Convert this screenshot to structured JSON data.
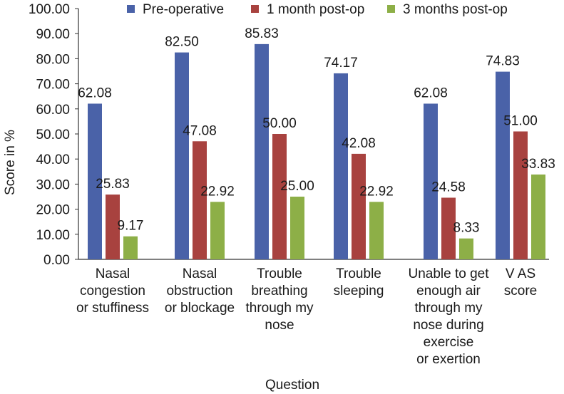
{
  "chart_data": {
    "type": "bar",
    "title": "",
    "xlabel": "Question",
    "ylabel": "Score in %",
    "ylim": [
      0,
      100
    ],
    "yticks": [
      "0.00",
      "10.00",
      "20.00",
      "30.00",
      "40.00",
      "50.00",
      "60.00",
      "70.00",
      "80.00",
      "90.00",
      "100.00"
    ],
    "grid": false,
    "legend_position": "top",
    "categories": [
      [
        "Nasal",
        "congestion",
        "or stuffiness"
      ],
      [
        "Nasal",
        "obstruction",
        "or blockage"
      ],
      [
        "Trouble",
        "breathing",
        "through my",
        "nose"
      ],
      [
        "Trouble",
        "sleeping"
      ],
      [
        "Unable to get",
        "enough air",
        "through my",
        "nose during",
        "exercise",
        "or exertion"
      ],
      [
        "V AS",
        "score"
      ]
    ],
    "series": [
      {
        "name": "Pre-operative",
        "color": "#4a62a8",
        "values": [
          62.08,
          82.5,
          85.83,
          74.17,
          62.08,
          74.83
        ],
        "labels": [
          "62.08",
          "82.50",
          "85.83",
          "74.17",
          "62.08",
          "74.83"
        ]
      },
      {
        "name": "1 month post-op",
        "color": "#a8423f",
        "values": [
          25.83,
          47.08,
          50.0,
          42.08,
          24.58,
          51.0
        ],
        "labels": [
          "25.83",
          "47.08",
          "50.00",
          "42.08",
          "24.58",
          "51.00"
        ]
      },
      {
        "name": "3 months post-op",
        "color": "#8daf47",
        "values": [
          9.17,
          22.92,
          25.0,
          22.92,
          8.33,
          33.83
        ],
        "labels": [
          "9.17",
          "22.92",
          "25.00",
          "22.92",
          "8.33",
          "33.83"
        ]
      }
    ]
  }
}
